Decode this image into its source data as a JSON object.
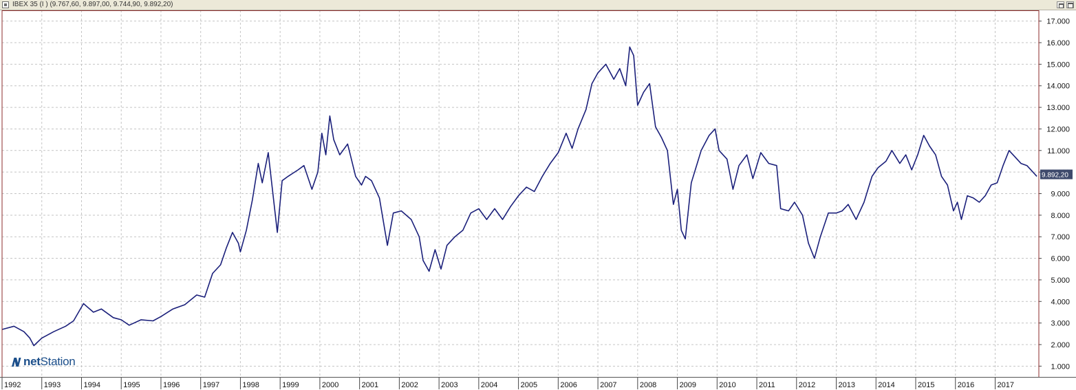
{
  "window": {
    "title": "IBEX 35 (I ) (9.767,60, 9.897,00, 9.744,90, 9.892,20)"
  },
  "logo": {
    "prefix": "net",
    "suffix": "Station",
    "icon": "netstation-n-icon"
  },
  "colors": {
    "line": "#1a1f7a",
    "grid": "#c4c4c4",
    "frame": "#8b2b2b",
    "price_tag_bg": "#3e4a6c",
    "logo": "#1b4e8a"
  },
  "chart_data": {
    "type": "line",
    "title": "IBEX 35 (I ) (9.767,60, 9.897,00, 9.744,90, 9.892,20)",
    "xlabel": "",
    "ylabel": "",
    "xlim": [
      1992.0,
      2018.1
    ],
    "ylim": [
      500,
      17500
    ],
    "grid": true,
    "y_ticks": [
      "1.000",
      "2.000",
      "3.000",
      "4.000",
      "5.000",
      "6.000",
      "7.000",
      "8.000",
      "9.000",
      "10.000",
      "11.000",
      "12.000",
      "13.000",
      "14.000",
      "15.000",
      "16.000",
      "17.000"
    ],
    "x_ticks": [
      "1992",
      "1993",
      "1994",
      "1995",
      "1996",
      "1997",
      "1998",
      "1999",
      "2000",
      "2001",
      "2002",
      "2003",
      "2004",
      "2005",
      "2006",
      "2007",
      "2008",
      "2009",
      "2010",
      "2011",
      "2012",
      "2013",
      "2014",
      "2015",
      "2016",
      "2017"
    ],
    "last_value_label": "9.892,20",
    "last_value": 9892.2,
    "series": [
      {
        "points": [
          [
            1992.0,
            2700
          ],
          [
            1992.3,
            2850
          ],
          [
            1992.55,
            2600
          ],
          [
            1992.7,
            2300
          ],
          [
            1992.8,
            1950
          ],
          [
            1993.0,
            2300
          ],
          [
            1993.3,
            2600
          ],
          [
            1993.6,
            2850
          ],
          [
            1993.8,
            3100
          ],
          [
            1994.05,
            3900
          ],
          [
            1994.3,
            3500
          ],
          [
            1994.5,
            3650
          ],
          [
            1994.8,
            3250
          ],
          [
            1995.0,
            3150
          ],
          [
            1995.2,
            2900
          ],
          [
            1995.5,
            3150
          ],
          [
            1995.8,
            3100
          ],
          [
            1996.0,
            3300
          ],
          [
            1996.3,
            3650
          ],
          [
            1996.6,
            3850
          ],
          [
            1996.9,
            4300
          ],
          [
            1997.1,
            4200
          ],
          [
            1997.3,
            5300
          ],
          [
            1997.5,
            5700
          ],
          [
            1997.65,
            6500
          ],
          [
            1997.8,
            7200
          ],
          [
            1997.95,
            6700
          ],
          [
            1998.0,
            6300
          ],
          [
            1998.15,
            7300
          ],
          [
            1998.3,
            8700
          ],
          [
            1998.45,
            10400
          ],
          [
            1998.55,
            9500
          ],
          [
            1998.7,
            10900
          ],
          [
            1998.8,
            9300
          ],
          [
            1998.93,
            7200
          ],
          [
            1999.05,
            9600
          ],
          [
            1999.2,
            9800
          ],
          [
            1999.45,
            10100
          ],
          [
            1999.6,
            10300
          ],
          [
            1999.8,
            9200
          ],
          [
            1999.95,
            10000
          ],
          [
            2000.05,
            11800
          ],
          [
            2000.15,
            10800
          ],
          [
            2000.25,
            12600
          ],
          [
            2000.35,
            11500
          ],
          [
            2000.5,
            10800
          ],
          [
            2000.7,
            11300
          ],
          [
            2000.9,
            9800
          ],
          [
            2001.05,
            9400
          ],
          [
            2001.15,
            9800
          ],
          [
            2001.3,
            9600
          ],
          [
            2001.5,
            8800
          ],
          [
            2001.7,
            6600
          ],
          [
            2001.85,
            8100
          ],
          [
            2002.05,
            8200
          ],
          [
            2002.3,
            7800
          ],
          [
            2002.5,
            7000
          ],
          [
            2002.6,
            5900
          ],
          [
            2002.75,
            5400
          ],
          [
            2002.9,
            6400
          ],
          [
            2003.05,
            5500
          ],
          [
            2003.2,
            6600
          ],
          [
            2003.4,
            7000
          ],
          [
            2003.6,
            7300
          ],
          [
            2003.8,
            8100
          ],
          [
            2004.0,
            8300
          ],
          [
            2004.2,
            7800
          ],
          [
            2004.4,
            8300
          ],
          [
            2004.6,
            7800
          ],
          [
            2004.8,
            8400
          ],
          [
            2005.0,
            8900
          ],
          [
            2005.2,
            9300
          ],
          [
            2005.4,
            9100
          ],
          [
            2005.6,
            9800
          ],
          [
            2005.8,
            10400
          ],
          [
            2006.0,
            10900
          ],
          [
            2006.2,
            11800
          ],
          [
            2006.35,
            11100
          ],
          [
            2006.5,
            12000
          ],
          [
            2006.7,
            12900
          ],
          [
            2006.85,
            14100
          ],
          [
            2007.0,
            14600
          ],
          [
            2007.2,
            15000
          ],
          [
            2007.4,
            14300
          ],
          [
            2007.55,
            14800
          ],
          [
            2007.7,
            14000
          ],
          [
            2007.8,
            15800
          ],
          [
            2007.9,
            15400
          ],
          [
            2008.0,
            13100
          ],
          [
            2008.15,
            13700
          ],
          [
            2008.3,
            14100
          ],
          [
            2008.45,
            12100
          ],
          [
            2008.6,
            11600
          ],
          [
            2008.75,
            11000
          ],
          [
            2008.9,
            8500
          ],
          [
            2009.0,
            9200
          ],
          [
            2009.1,
            7300
          ],
          [
            2009.2,
            6900
          ],
          [
            2009.35,
            9500
          ],
          [
            2009.6,
            11000
          ],
          [
            2009.8,
            11700
          ],
          [
            2009.95,
            12000
          ],
          [
            2010.05,
            11000
          ],
          [
            2010.25,
            10600
          ],
          [
            2010.4,
            9200
          ],
          [
            2010.55,
            10300
          ],
          [
            2010.75,
            10800
          ],
          [
            2010.9,
            9700
          ],
          [
            2011.1,
            10900
          ],
          [
            2011.3,
            10400
          ],
          [
            2011.5,
            10300
          ],
          [
            2011.6,
            8300
          ],
          [
            2011.8,
            8200
          ],
          [
            2011.95,
            8600
          ],
          [
            2012.15,
            8000
          ],
          [
            2012.3,
            6700
          ],
          [
            2012.45,
            6000
          ],
          [
            2012.6,
            7000
          ],
          [
            2012.8,
            8100
          ],
          [
            2013.0,
            8100
          ],
          [
            2013.15,
            8200
          ],
          [
            2013.3,
            8500
          ],
          [
            2013.5,
            7800
          ],
          [
            2013.7,
            8600
          ],
          [
            2013.9,
            9800
          ],
          [
            2014.05,
            10200
          ],
          [
            2014.25,
            10500
          ],
          [
            2014.4,
            11000
          ],
          [
            2014.6,
            10400
          ],
          [
            2014.75,
            10800
          ],
          [
            2014.9,
            10100
          ],
          [
            2015.05,
            10800
          ],
          [
            2015.2,
            11700
          ],
          [
            2015.35,
            11200
          ],
          [
            2015.5,
            10800
          ],
          [
            2015.65,
            9800
          ],
          [
            2015.8,
            9400
          ],
          [
            2015.95,
            8200
          ],
          [
            2016.05,
            8600
          ],
          [
            2016.15,
            7800
          ],
          [
            2016.3,
            8900
          ],
          [
            2016.45,
            8800
          ],
          [
            2016.6,
            8600
          ],
          [
            2016.75,
            8900
          ],
          [
            2016.9,
            9400
          ],
          [
            2017.05,
            9500
          ],
          [
            2017.2,
            10300
          ],
          [
            2017.35,
            11000
          ],
          [
            2017.5,
            10700
          ],
          [
            2017.65,
            10400
          ],
          [
            2017.8,
            10300
          ],
          [
            2017.95,
            10000
          ],
          [
            2018.05,
            9800
          ]
        ]
      }
    ]
  }
}
